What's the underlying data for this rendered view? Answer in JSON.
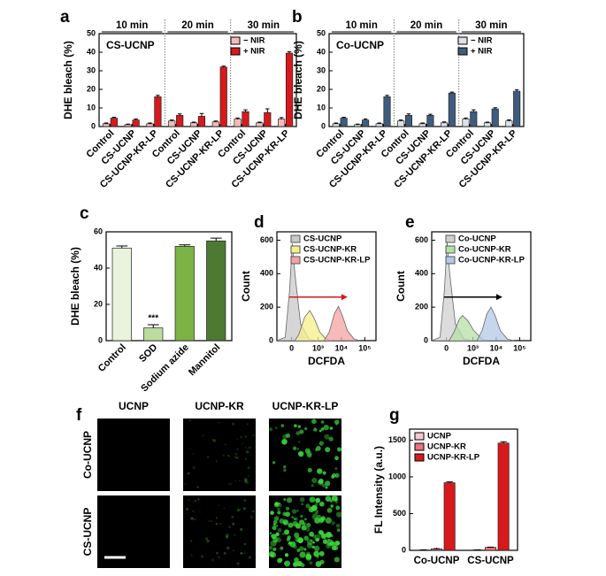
{
  "chart_data": [
    {
      "type": "bar",
      "panel": "a",
      "ylabel": "DHE bleach (%)",
      "annotation": "CS-UCNP",
      "groups": [
        "10 min",
        "20 min",
        "30 min"
      ],
      "categories": [
        "Control",
        "CS-UCNP",
        "CS-UCNP-KR-LP",
        "Control",
        "CS-UCNP",
        "CS-UCNP-KR-LP",
        "Control",
        "CS-UCNP",
        "CS-UCNP-KR-LP"
      ],
      "series": [
        {
          "name": "− NIR",
          "color": "#f6b9b9",
          "values": [
            1.5,
            1,
            1.5,
            3,
            2,
            2.5,
            4,
            2,
            4
          ],
          "errors": [
            0.4,
            0.3,
            0.4,
            0.5,
            0.4,
            0.5,
            0.6,
            0.4,
            0.8
          ]
        },
        {
          "name": "+ NIR",
          "color": "#d7191c",
          "values": [
            4.5,
            3.5,
            16,
            6,
            5.5,
            32,
            8,
            7.5,
            39.5
          ],
          "errors": [
            0.5,
            0.6,
            0.8,
            0.8,
            1.5,
            0.5,
            1,
            2,
            0.8
          ]
        }
      ],
      "ylim": [
        0,
        50
      ],
      "yticks": [
        0,
        10,
        20,
        30,
        40,
        50
      ],
      "legend": "upper right"
    },
    {
      "type": "bar",
      "panel": "b",
      "ylabel": "DHE bleach (%)",
      "annotation": "Co-UCNP",
      "groups": [
        "10 min",
        "20 min",
        "30 min"
      ],
      "categories": [
        "Control",
        "CS-UCNP",
        "CS-UCNP-KR-LP",
        "Control",
        "CS-UCNP",
        "CS-UCNP-KR-LP",
        "Control",
        "CS-UCNP",
        "CS-UCNP-KR-LP"
      ],
      "series": [
        {
          "name": "− NIR",
          "color": "#dde1e8",
          "values": [
            1.5,
            1,
            1.5,
            3,
            1.5,
            2,
            4,
            2,
            3
          ],
          "errors": [
            0.4,
            0.3,
            0.4,
            0.5,
            0.4,
            0.5,
            0.6,
            0.4,
            0.6
          ]
        },
        {
          "name": "+ NIR",
          "color": "#3f5c7e",
          "values": [
            4.5,
            3.5,
            16,
            6,
            6,
            18,
            8,
            9.5,
            19
          ],
          "errors": [
            0.5,
            0.6,
            0.8,
            0.8,
            0.6,
            0.5,
            1,
            0.6,
            0.8
          ]
        }
      ],
      "ylim": [
        0,
        50
      ],
      "yticks": [
        0,
        10,
        20,
        30,
        40,
        50
      ],
      "legend": "upper right"
    },
    {
      "type": "bar",
      "panel": "c",
      "ylabel": "DHE bleach (%)",
      "categories": [
        "Control",
        "SOD",
        "Sodium azide",
        "Mannitol"
      ],
      "values": [
        51,
        7,
        52,
        55
      ],
      "errors": [
        1.2,
        1.8,
        0.8,
        1.5
      ],
      "colors": [
        "#eaf3dc",
        "#bcdb9d",
        "#7db346",
        "#4e7933"
      ],
      "annotation": {
        "text": "***",
        "category": 1
      },
      "ylim": [
        0,
        60
      ],
      "yticks": [
        0,
        20,
        40,
        60
      ]
    },
    {
      "type": "density",
      "panel": "d",
      "ylabel": "Count",
      "xlabel": "DCFDA",
      "xscale": "biexponential",
      "xlim": [
        -300,
        300000
      ],
      "xticks": [
        0,
        {
          "value": 1000,
          "label": "10³"
        },
        {
          "value": 10000,
          "label": "10⁴"
        },
        {
          "value": 100000,
          "label": "10⁵"
        }
      ],
      "ylim": [
        0,
        650
      ],
      "yticks": [
        0,
        200,
        400,
        600
      ],
      "legend": "upper right",
      "arrow_color": "#d7191c",
      "series": [
        {
          "name": "CS-UCNP",
          "color": "#c8c8c8",
          "x": [
            -300,
            -100,
            -30,
            10,
            50,
            150,
            400,
            1000
          ],
          "values": [
            0,
            20,
            300,
            580,
            400,
            100,
            10,
            0
          ]
        },
        {
          "name": "CS-UCNP-KR",
          "color": "#f4f08a",
          "x": [
            50,
            120,
            250,
            440,
            700,
            1200,
            2200,
            3500
          ],
          "values": [
            0,
            40,
            140,
            180,
            130,
            50,
            10,
            0
          ]
        },
        {
          "name": "CS-UCNP-KR-LP",
          "color": "#f4a3a3",
          "x": [
            1800,
            3000,
            5000,
            7500,
            11000,
            18000,
            35000,
            60000
          ],
          "values": [
            0,
            50,
            160,
            205,
            150,
            60,
            10,
            0
          ]
        }
      ]
    },
    {
      "type": "density",
      "panel": "e",
      "ylabel": "Count",
      "xlabel": "DCFDA",
      "xscale": "biexponential",
      "xlim": [
        -300,
        300000
      ],
      "xticks": [
        0,
        {
          "value": 1000,
          "label": "10³"
        },
        {
          "value": 10000,
          "label": "10⁴"
        },
        {
          "value": 100000,
          "label": "10⁵"
        }
      ],
      "ylim": [
        0,
        650
      ],
      "yticks": [
        0,
        200,
        400,
        600
      ],
      "legend": "upper right",
      "arrow_color": "#000000",
      "series": [
        {
          "name": "Co-UCNP",
          "color": "#d0d0d0",
          "x": [
            -300,
            -100,
            -30,
            10,
            50,
            150,
            400,
            1000
          ],
          "values": [
            0,
            20,
            300,
            590,
            400,
            100,
            10,
            0
          ]
        },
        {
          "name": "Co-UCNP-KR",
          "color": "#b5dfa5",
          "x": [
            40,
            120,
            250,
            350,
            600,
            1100,
            2500,
            4000
          ],
          "values": [
            0,
            50,
            130,
            150,
            120,
            60,
            10,
            0
          ]
        },
        {
          "name": "Co-UCNP-KR-LP",
          "color": "#b3c8e6",
          "x": [
            1500,
            2500,
            4000,
            6000,
            9000,
            15000,
            30000,
            55000
          ],
          "values": [
            0,
            60,
            160,
            200,
            150,
            60,
            10,
            0
          ]
        }
      ]
    },
    {
      "type": "bar",
      "panel": "g",
      "ylabel": "FL Intensity (a.u.)",
      "categories": [
        "Co-UCNP",
        "CS-UCNP"
      ],
      "series": [
        {
          "name": "UCNP",
          "color": "#f8c8cc",
          "values": [
            5,
            5
          ],
          "errors": [
            2,
            2
          ]
        },
        {
          "name": "UCNP-KR",
          "color": "#ee6f7d",
          "values": [
            20,
            40
          ],
          "errors": [
            3,
            4
          ]
        },
        {
          "name": "UCNP-KR-LP",
          "color": "#d7191c",
          "values": [
            920,
            1460
          ],
          "errors": [
            12,
            18
          ]
        }
      ],
      "ylim": [
        0,
        1650
      ],
      "yticks": [
        0,
        500,
        1000,
        1500
      ],
      "legend": "upper left"
    }
  ],
  "image_panel": {
    "panel": "f",
    "columns": [
      "UCNP",
      "UCNP-KR",
      "UCNP-KR-LP"
    ],
    "rows": [
      "Co-UCNP",
      "CS-UCNP"
    ]
  }
}
